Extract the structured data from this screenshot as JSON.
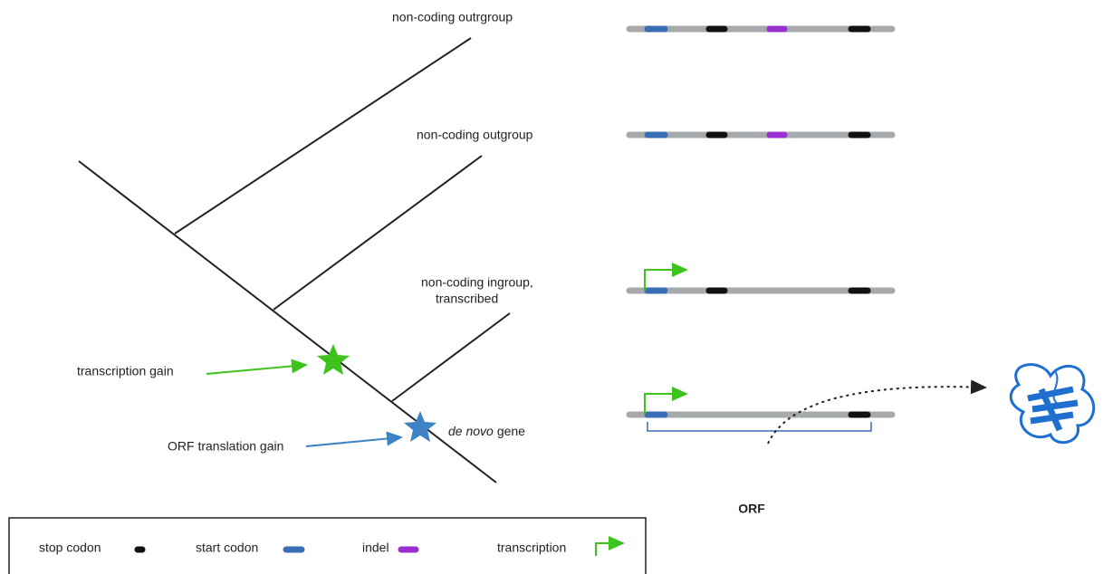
{
  "tree": {
    "leaves": [
      {
        "label": "non-coding outrgroup"
      },
      {
        "label": "non-coding outgroup"
      },
      {
        "label_lines": [
          "non-coding ingroup,",
          "transcribed"
        ]
      }
    ],
    "events": [
      {
        "label": "transcription gain"
      },
      {
        "label": "ORF translation gain"
      }
    ],
    "de_novo": {
      "italic": "de novo",
      "rest": "gene"
    }
  },
  "orf_label": "ORF",
  "legend": [
    {
      "label": "stop codon"
    },
    {
      "label": "start codon"
    },
    {
      "label": "indel"
    },
    {
      "label": "transcription"
    }
  ]
}
